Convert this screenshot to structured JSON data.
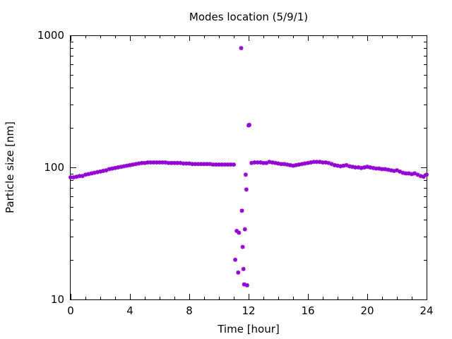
{
  "chart_data": {
    "type": "scatter",
    "title": "Modes location (5/9/1)",
    "xlabel": "Time [hour]",
    "ylabel": "Particle size [nm]",
    "xlim": [
      0,
      24
    ],
    "ylim": [
      10,
      1000
    ],
    "yscale": "log",
    "grid": false,
    "legend": "none",
    "x_ticks": [
      0,
      4,
      8,
      12,
      16,
      20,
      24
    ],
    "x_tick_labels": [
      "0",
      "4",
      "8",
      "12",
      "16",
      "20",
      "24"
    ],
    "y_ticks": [
      10,
      100,
      1000
    ],
    "y_tick_labels": [
      "10",
      "100",
      "1000"
    ],
    "marker_color": "#9400d3",
    "series": [
      {
        "values": [
          [
            0.0,
            84
          ],
          [
            0.2,
            84
          ],
          [
            0.4,
            85
          ],
          [
            0.6,
            86
          ],
          [
            0.8,
            86
          ],
          [
            1.0,
            88
          ],
          [
            1.2,
            89
          ],
          [
            1.4,
            90
          ],
          [
            1.6,
            91
          ],
          [
            1.8,
            92
          ],
          [
            2.0,
            93
          ],
          [
            2.2,
            94
          ],
          [
            2.4,
            95
          ],
          [
            2.6,
            97
          ],
          [
            2.8,
            98
          ],
          [
            3.0,
            99
          ],
          [
            3.2,
            100
          ],
          [
            3.4,
            101
          ],
          [
            3.6,
            102
          ],
          [
            3.8,
            103
          ],
          [
            4.0,
            104
          ],
          [
            4.2,
            105
          ],
          [
            4.4,
            106
          ],
          [
            4.6,
            107
          ],
          [
            4.8,
            108
          ],
          [
            5.0,
            108
          ],
          [
            5.2,
            109
          ],
          [
            5.4,
            109
          ],
          [
            5.6,
            109
          ],
          [
            5.8,
            109
          ],
          [
            6.0,
            109
          ],
          [
            6.2,
            109
          ],
          [
            6.4,
            109
          ],
          [
            6.6,
            108
          ],
          [
            6.8,
            108
          ],
          [
            7.0,
            108
          ],
          [
            7.2,
            108
          ],
          [
            7.4,
            108
          ],
          [
            7.6,
            107
          ],
          [
            7.8,
            107
          ],
          [
            8.0,
            107
          ],
          [
            8.2,
            106
          ],
          [
            8.4,
            106
          ],
          [
            8.6,
            106
          ],
          [
            8.8,
            106
          ],
          [
            9.0,
            106
          ],
          [
            9.2,
            106
          ],
          [
            9.4,
            106
          ],
          [
            9.6,
            105
          ],
          [
            9.8,
            105
          ],
          [
            10.0,
            105
          ],
          [
            10.2,
            105
          ],
          [
            10.4,
            105
          ],
          [
            10.6,
            105
          ],
          [
            10.8,
            105
          ],
          [
            11.0,
            105
          ],
          [
            11.1,
            20
          ],
          [
            11.2,
            33
          ],
          [
            11.3,
            16
          ],
          [
            11.35,
            32
          ],
          [
            11.5,
            800
          ],
          [
            11.55,
            47
          ],
          [
            11.6,
            25
          ],
          [
            11.65,
            17
          ],
          [
            11.7,
            13
          ],
          [
            11.75,
            34
          ],
          [
            11.8,
            88
          ],
          [
            11.85,
            68
          ],
          [
            11.9,
            12.8
          ],
          [
            12.0,
            208
          ],
          [
            12.05,
            210
          ],
          [
            12.2,
            108
          ],
          [
            12.4,
            109
          ],
          [
            12.6,
            109
          ],
          [
            12.8,
            109
          ],
          [
            13.0,
            108
          ],
          [
            13.2,
            108
          ],
          [
            13.4,
            110
          ],
          [
            13.6,
            109
          ],
          [
            13.8,
            108
          ],
          [
            14.0,
            107
          ],
          [
            14.2,
            106
          ],
          [
            14.4,
            106
          ],
          [
            14.6,
            105
          ],
          [
            14.8,
            104
          ],
          [
            15.0,
            103
          ],
          [
            15.2,
            104
          ],
          [
            15.4,
            105
          ],
          [
            15.6,
            106
          ],
          [
            15.8,
            107
          ],
          [
            16.0,
            108
          ],
          [
            16.2,
            109
          ],
          [
            16.4,
            110
          ],
          [
            16.6,
            110
          ],
          [
            16.8,
            110
          ],
          [
            17.0,
            109
          ],
          [
            17.2,
            109
          ],
          [
            17.4,
            108
          ],
          [
            17.6,
            106
          ],
          [
            17.8,
            104
          ],
          [
            18.0,
            103
          ],
          [
            18.2,
            102
          ],
          [
            18.4,
            103
          ],
          [
            18.6,
            104
          ],
          [
            18.8,
            102
          ],
          [
            19.0,
            101
          ],
          [
            19.2,
            100
          ],
          [
            19.4,
            100
          ],
          [
            19.6,
            99
          ],
          [
            19.8,
            100
          ],
          [
            20.0,
            101
          ],
          [
            20.2,
            100
          ],
          [
            20.4,
            99
          ],
          [
            20.6,
            98
          ],
          [
            20.8,
            98
          ],
          [
            21.0,
            97
          ],
          [
            21.2,
            97
          ],
          [
            21.4,
            96
          ],
          [
            21.6,
            95
          ],
          [
            21.8,
            94
          ],
          [
            22.0,
            95
          ],
          [
            22.2,
            93
          ],
          [
            22.4,
            91
          ],
          [
            22.6,
            90
          ],
          [
            22.8,
            90
          ],
          [
            23.0,
            89
          ],
          [
            23.2,
            90
          ],
          [
            23.4,
            88
          ],
          [
            23.6,
            86
          ],
          [
            23.8,
            85
          ],
          [
            24.0,
            88
          ]
        ]
      }
    ]
  }
}
